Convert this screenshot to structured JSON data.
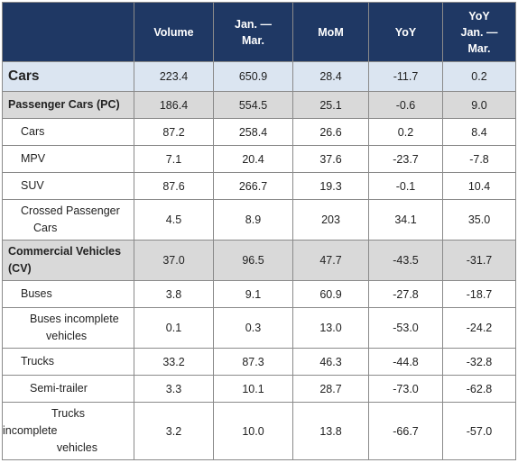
{
  "header": {
    "blank": "",
    "volume": "Volume",
    "jan_mar_1": "Jan. —",
    "jan_mar_2": "Mar.",
    "mom": "MoM",
    "yoy": "YoY",
    "yoy_jan_mar_1": "YoY",
    "yoy_jan_mar_2": "Jan. —",
    "yoy_jan_mar_3": "Mar."
  },
  "rows": [
    {
      "label": "Cars",
      "volume": "223.4",
      "jan_mar": "650.9",
      "mom": "28.4",
      "yoy": "-11.7",
      "yoy_jan_mar": "0.2"
    },
    {
      "label": "Passenger Cars (PC)",
      "volume": "186.4",
      "jan_mar": "554.5",
      "mom": "25.1",
      "yoy": "-0.6",
      "yoy_jan_mar": "9.0"
    },
    {
      "label": "Cars",
      "volume": "87.2",
      "jan_mar": "258.4",
      "mom": "26.6",
      "yoy": "0.2",
      "yoy_jan_mar": "8.4"
    },
    {
      "label": "MPV",
      "volume": "7.1",
      "jan_mar": "20.4",
      "mom": "37.6",
      "yoy": "-23.7",
      "yoy_jan_mar": "-7.8"
    },
    {
      "label": "SUV",
      "volume": "87.6",
      "jan_mar": "266.7",
      "mom": "19.3",
      "yoy": "-0.1",
      "yoy_jan_mar": "10.4"
    },
    {
      "label_1": "Crossed Passenger",
      "label_2": "Cars",
      "volume": "4.5",
      "jan_mar": "8.9",
      "mom": "203",
      "yoy": "34.1",
      "yoy_jan_mar": "35.0"
    },
    {
      "label_1": "Commercial Vehicles",
      "label_2": "(CV)",
      "volume": "37.0",
      "jan_mar": "96.5",
      "mom": "47.7",
      "yoy": "-43.5",
      "yoy_jan_mar": "-31.7"
    },
    {
      "label": "Buses",
      "volume": "3.8",
      "jan_mar": "9.1",
      "mom": "60.9",
      "yoy": "-27.8",
      "yoy_jan_mar": "-18.7"
    },
    {
      "label_1": "Buses incomplete",
      "label_2": "vehicles",
      "volume": "0.1",
      "jan_mar": "0.3",
      "mom": "13.0",
      "yoy": "-53.0",
      "yoy_jan_mar": "-24.2"
    },
    {
      "label": "Trucks",
      "volume": "33.2",
      "jan_mar": "87.3",
      "mom": "46.3",
      "yoy": "-44.8",
      "yoy_jan_mar": "-32.8"
    },
    {
      "label": "Semi-trailer",
      "volume": "3.3",
      "jan_mar": "10.1",
      "mom": "28.7",
      "yoy": "-73.0",
      "yoy_jan_mar": "-62.8"
    },
    {
      "label_1": "Trucks",
      "label_2": "incomplete",
      "label_3": "vehicles",
      "volume": "3.2",
      "jan_mar": "10.0",
      "mom": "13.8",
      "yoy": "-66.7",
      "yoy_jan_mar": "-57.0"
    }
  ],
  "colors": {
    "header_bg": "#1f3864",
    "total_row_bg": "#dbe5f1",
    "category_row_bg": "#d9d9d9",
    "border": "#8a8a8a"
  }
}
